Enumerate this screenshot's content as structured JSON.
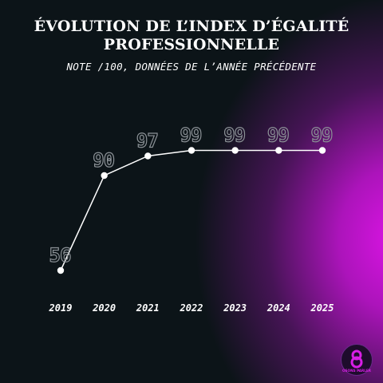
{
  "header": {
    "title_line1": "ÉVOLUTION DE L’INDEX D’ÉGALITÉ",
    "title_line2": "PROFESSIONNELLE",
    "subtitle": "NOTE /100, DONNÉES DE L’ANNÉE PRÉCÉDENTE"
  },
  "chart_data": {
    "type": "line",
    "title": "ÉVOLUTION DE L’INDEX D’ÉGALITÉ PROFESSIONNELLE",
    "subtitle": "NOTE /100, DONNÉES DE L’ANNÉE PRÉCÉDENTE",
    "x": [
      "2019",
      "2020",
      "2021",
      "2022",
      "2023",
      "2024",
      "2025"
    ],
    "series": [
      {
        "values": [
          56,
          90,
          97,
          99,
          99,
          99,
          99
        ]
      }
    ],
    "data_labels": [
      "56",
      "90",
      "97",
      "99",
      "99",
      "99",
      "99"
    ],
    "xlabel": "",
    "ylabel": "",
    "ylim": [
      50,
      100
    ],
    "grid": false,
    "legend": "none",
    "colors": {
      "line": "#ffffff",
      "points": "#ffffff",
      "labels_outline": "#8b9196",
      "background": "#0c1418",
      "accent": "#d81ee6"
    }
  },
  "logo": {
    "icon": "figure-eight-logo-icon",
    "text": "OSONS PARLER"
  }
}
